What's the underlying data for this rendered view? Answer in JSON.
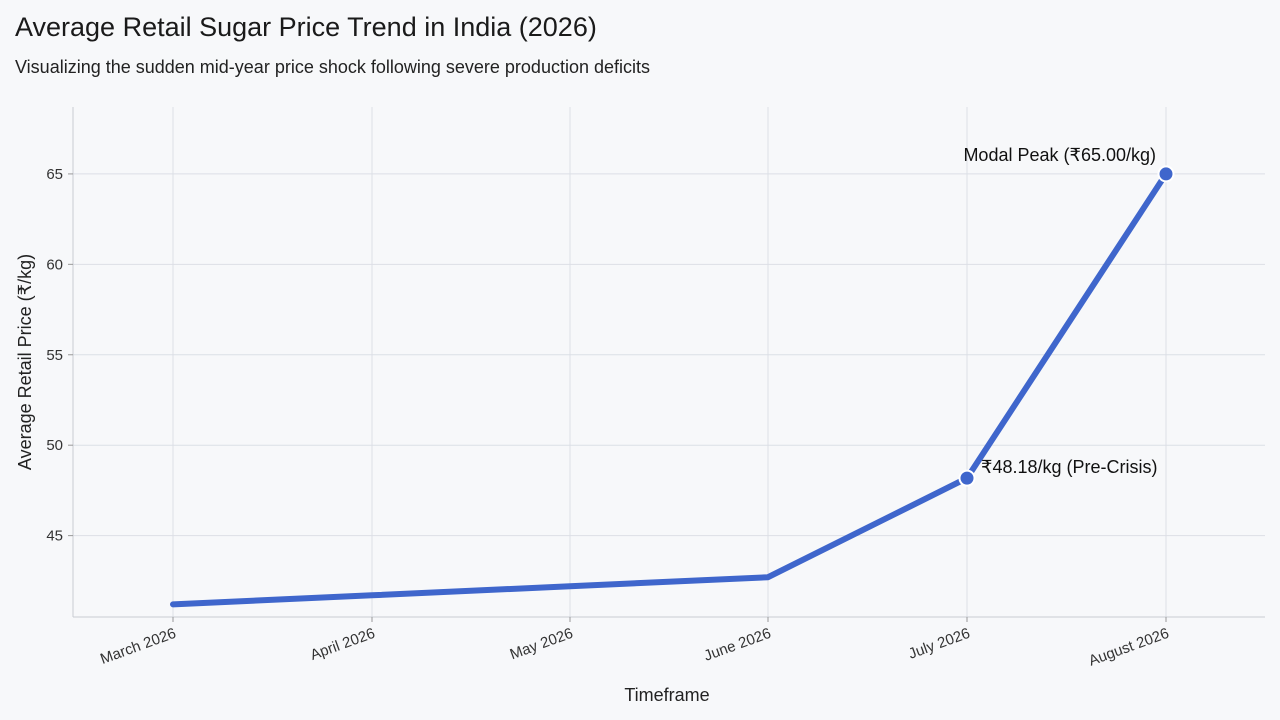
{
  "chart_data": {
    "type": "line",
    "title": "Average Retail Sugar Price Trend in India (2026)",
    "subtitle": "Visualizing the sudden mid-year price shock following severe production deficits",
    "xlabel": "Timeframe",
    "ylabel": "Average Retail Price (₹/kg)",
    "categories": [
      "March 2026",
      "April 2026",
      "May 2026",
      "June 2026",
      "July 2026",
      "August 2026"
    ],
    "values": [
      41.2,
      41.7,
      42.2,
      42.7,
      48.18,
      65.0
    ],
    "y_ticks": [
      45,
      50,
      55,
      60,
      65
    ],
    "ylim": [
      40.5,
      68.7
    ],
    "grid": true,
    "line_color": "#3f66cc",
    "markers": [
      {
        "index": 4,
        "label": "₹48.18/kg (Pre-Crisis)",
        "placement": "right"
      },
      {
        "index": 5,
        "label": "Modal Peak (₹65.00/kg)",
        "placement": "above-left"
      }
    ]
  }
}
